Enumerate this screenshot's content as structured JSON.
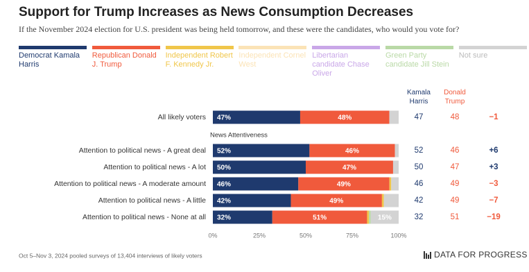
{
  "chart_data": {
    "type": "stacked-bar-horizontal",
    "title": "Support for Trump Increases as News Consumption Decreases",
    "subtitle": "If the November 2024 election for U.S. president was being held tomorrow, and these were the candidates, who would you vote for?",
    "categories": [
      "All likely voters",
      "Attention to political news - A great deal",
      "Attention to political news - A lot",
      "Attention to political news - A moderate amount",
      "Attention to political news - A little",
      "Attention to political news - None at all"
    ],
    "group_label": "News Attentiveness",
    "series": [
      {
        "name": "Democrat Kamala Harris",
        "color": "#1f3a6e",
        "values": [
          47,
          52,
          50,
          46,
          42,
          32
        ],
        "value_labels": [
          "47%",
          "52%",
          "50%",
          "46%",
          "42%",
          "32%"
        ]
      },
      {
        "name": "Republican Donald J. Trump",
        "color": "#f05a3c",
        "values": [
          48,
          46,
          47,
          49,
          49,
          51
        ],
        "value_labels": [
          "48%",
          "46%",
          "47%",
          "49%",
          "49%",
          "51%"
        ]
      },
      {
        "name": "Independent Robert F. Kennedy Jr.",
        "color": "#f0c64a",
        "values": [
          0,
          0,
          0,
          1,
          1,
          1
        ]
      },
      {
        "name": "Independent Cornel West",
        "color": "#fbe3b6",
        "values": [
          0,
          0,
          0,
          0,
          0,
          0
        ]
      },
      {
        "name": "Libertarian candidate Chase Oliver",
        "color": "#c9a7e8",
        "values": [
          0,
          0,
          0,
          0,
          0,
          0
        ]
      },
      {
        "name": "Green Party candidate Jill Stein",
        "color": "#b9d9a6",
        "values": [
          0,
          0,
          0,
          0,
          0,
          1
        ]
      },
      {
        "name": "Not sure",
        "color": "#d3d3d3",
        "values": [
          5,
          2,
          3,
          4,
          8,
          15
        ],
        "value_labels": [
          null,
          null,
          null,
          null,
          null,
          "15%"
        ]
      }
    ],
    "column_headers": [
      "Kamala Harris",
      "Donald Trump"
    ],
    "margin": {
      "values": [
        -1,
        6,
        3,
        -3,
        -7,
        -19
      ],
      "value_labels": [
        "−1",
        "+6",
        "+3",
        "−3",
        "−7",
        "−19"
      ]
    },
    "xlim": [
      0,
      100
    ],
    "xticks": [
      {
        "value": 0,
        "label": "0%"
      },
      {
        "value": 25,
        "label": "25%"
      },
      {
        "value": 50,
        "label": "50%"
      },
      {
        "value": 75,
        "label": "75%"
      },
      {
        "value": 100,
        "label": "100%"
      }
    ],
    "source": "Oct 5–Nov 3, 2024 pooled surveys of 13,404 interviews of likely voters",
    "brand": "DATA FOR PROGRESS"
  }
}
